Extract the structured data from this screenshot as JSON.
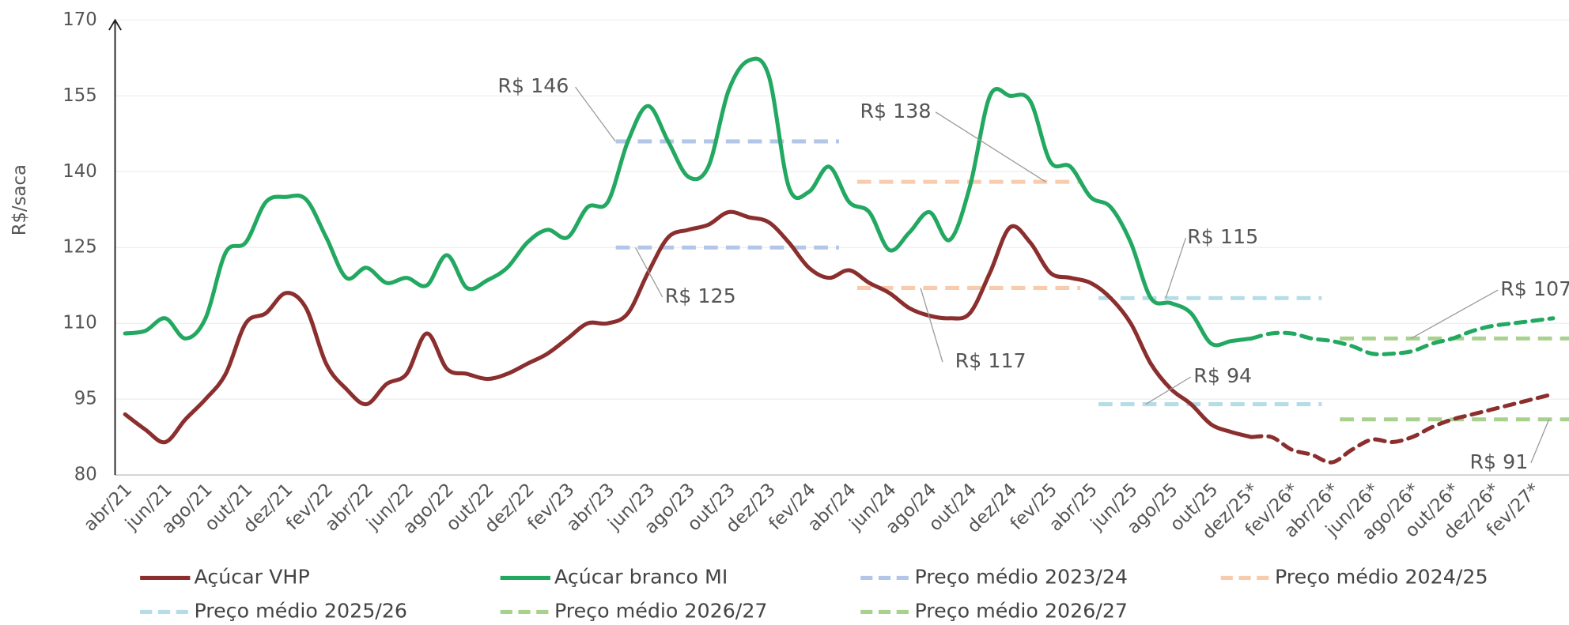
{
  "chart_data": {
    "type": "line",
    "y_label": "R$/saca",
    "categories": [
      "abr/21",
      null,
      "jun/21",
      null,
      "ago/21",
      null,
      "out/21",
      null,
      "dez/21",
      null,
      "fev/22",
      null,
      "abr/22",
      null,
      "jun/22",
      null,
      "ago/22",
      null,
      "out/22",
      null,
      "dez/22",
      null,
      "fev/23",
      null,
      "abr/23",
      null,
      "jun/23",
      null,
      "ago/23",
      null,
      "out/23",
      null,
      "dez/23",
      null,
      "fev/24",
      null,
      "abr/24",
      null,
      "jun/24",
      null,
      "ago/24",
      null,
      "out/24",
      null,
      "dez/24",
      null,
      "fev/25",
      null,
      "abr/25",
      null,
      "jun/25",
      null,
      "ago/25",
      null,
      "out/25",
      null,
      "dez/25*",
      null,
      "fev/26*",
      null,
      "abr/26*",
      null,
      "jun/26*",
      null,
      "ago/26*",
      null,
      "out/26*",
      null,
      "dez/26*",
      null,
      "fev/27*",
      null
    ],
    "series": [
      {
        "name": "Açúcar VHP",
        "color": "#8b2e2e",
        "values": [
          92,
          89,
          86.5,
          91,
          95,
          100,
          110,
          112,
          116,
          113,
          102,
          97,
          94,
          98,
          100,
          108,
          101,
          100,
          99,
          100,
          102,
          104,
          107,
          110,
          110,
          112,
          120,
          127,
          128.5,
          129.5,
          132,
          131,
          130,
          126,
          121,
          119,
          120.5,
          118,
          116,
          113,
          111.5,
          111,
          112,
          120,
          129,
          126,
          120,
          119,
          118,
          115,
          110,
          102,
          97,
          94,
          90,
          88.5,
          87.5,
          87.5,
          85,
          84,
          82.5,
          85,
          87,
          86.5,
          87.5,
          89.5,
          91,
          92,
          93,
          94,
          95,
          96
        ]
      },
      {
        "name": "Açúcar branco MI",
        "color": "#22a860",
        "values": [
          108,
          108.5,
          111,
          107,
          111,
          124,
          126,
          134,
          135,
          134.5,
          127,
          119,
          121,
          118,
          119,
          117.5,
          123.5,
          117,
          118.5,
          121,
          126,
          128.5,
          127,
          133,
          134,
          146,
          153,
          146,
          139,
          141,
          156,
          162,
          159,
          137,
          136,
          141,
          134,
          132,
          124.5,
          128,
          132,
          126.5,
          137,
          155,
          155,
          154,
          142,
          141,
          135,
          133,
          126,
          115,
          114,
          112,
          106,
          106.5,
          107,
          108,
          108,
          107,
          106.5,
          105.5,
          104,
          104,
          104.5,
          106,
          107,
          108.5,
          109.5,
          110,
          110.5,
          111
        ]
      }
    ],
    "averages": [
      {
        "name": "Preço médio 2023/24",
        "color": "#b4c6e7",
        "from": "abr/23",
        "to": "abr/24",
        "values": [
          146,
          125
        ],
        "value_labels": [
          "R$ 146",
          "R$ 125"
        ]
      },
      {
        "name": "Preço médio 2024/25",
        "color": "#f8cbad",
        "from": "abr/24",
        "to": "abr/25",
        "values": [
          138,
          117
        ],
        "value_labels": [
          "R$ 138",
          "R$ 117"
        ]
      },
      {
        "name": "Preço médio 2025/26",
        "color": "#b4dde8",
        "from": "abr/25",
        "to": "abr/26*",
        "values": [
          115,
          94
        ],
        "value_labels": [
          "R$ 115",
          "R$ 94"
        ]
      },
      {
        "name": "Preço médio 2026/27",
        "color": "#a9d18e",
        "from": "abr/26*",
        "to": null,
        "values": [
          107
        ],
        "value_labels": [
          "R$ 107"
        ]
      },
      {
        "name": "Preço médio 2026/27",
        "color": "#a9d18e",
        "from": "abr/26*",
        "to": null,
        "values": [
          91
        ],
        "value_labels": [
          "R$ 91"
        ]
      }
    ],
    "ylim": [
      80,
      170
    ],
    "yticks": [
      80,
      95,
      110,
      125,
      140,
      155,
      170
    ],
    "grid": true
  }
}
